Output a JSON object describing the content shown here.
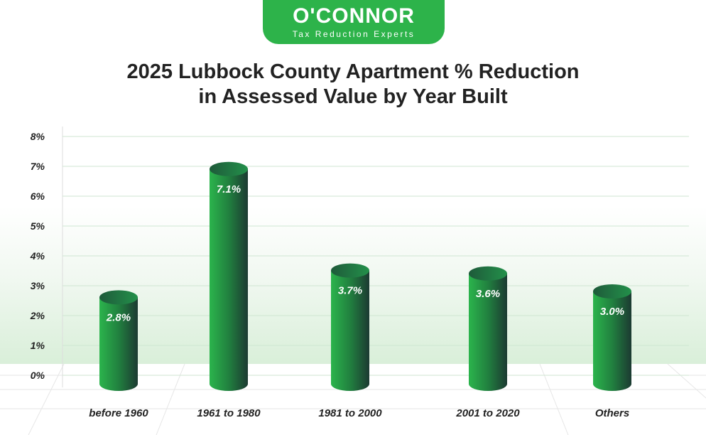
{
  "logo": {
    "brand": "O'CONNOR",
    "tagline": "Tax Reduction Experts"
  },
  "chart_data": {
    "type": "bar",
    "title": "2025 Lubbock County Apartment % Reduction in Assessed Value by Year Built",
    "title_lines": [
      "2025 Lubbock County Apartment % Reduction",
      "in Assessed Value by Year Built"
    ],
    "categories": [
      "before 1960",
      "1961 to 1980",
      "1981 to 2000",
      "2001 to 2020",
      "Others"
    ],
    "values": [
      2.8,
      7.1,
      3.7,
      3.6,
      3.0
    ],
    "data_labels": [
      "2.8%",
      "7.1%",
      "3.7%",
      "3.6%",
      "3.0%"
    ],
    "ylim": [
      0,
      8
    ],
    "yticks": [
      "0%",
      "1%",
      "2%",
      "3%",
      "4%",
      "5%",
      "6%",
      "7%",
      "8%"
    ],
    "xlabel": "",
    "ylabel": "",
    "grid": true,
    "colors": {
      "bar_light": "#2bb44c",
      "bar_dark": "#1c3a32",
      "grid": "#cfe6d2"
    }
  }
}
